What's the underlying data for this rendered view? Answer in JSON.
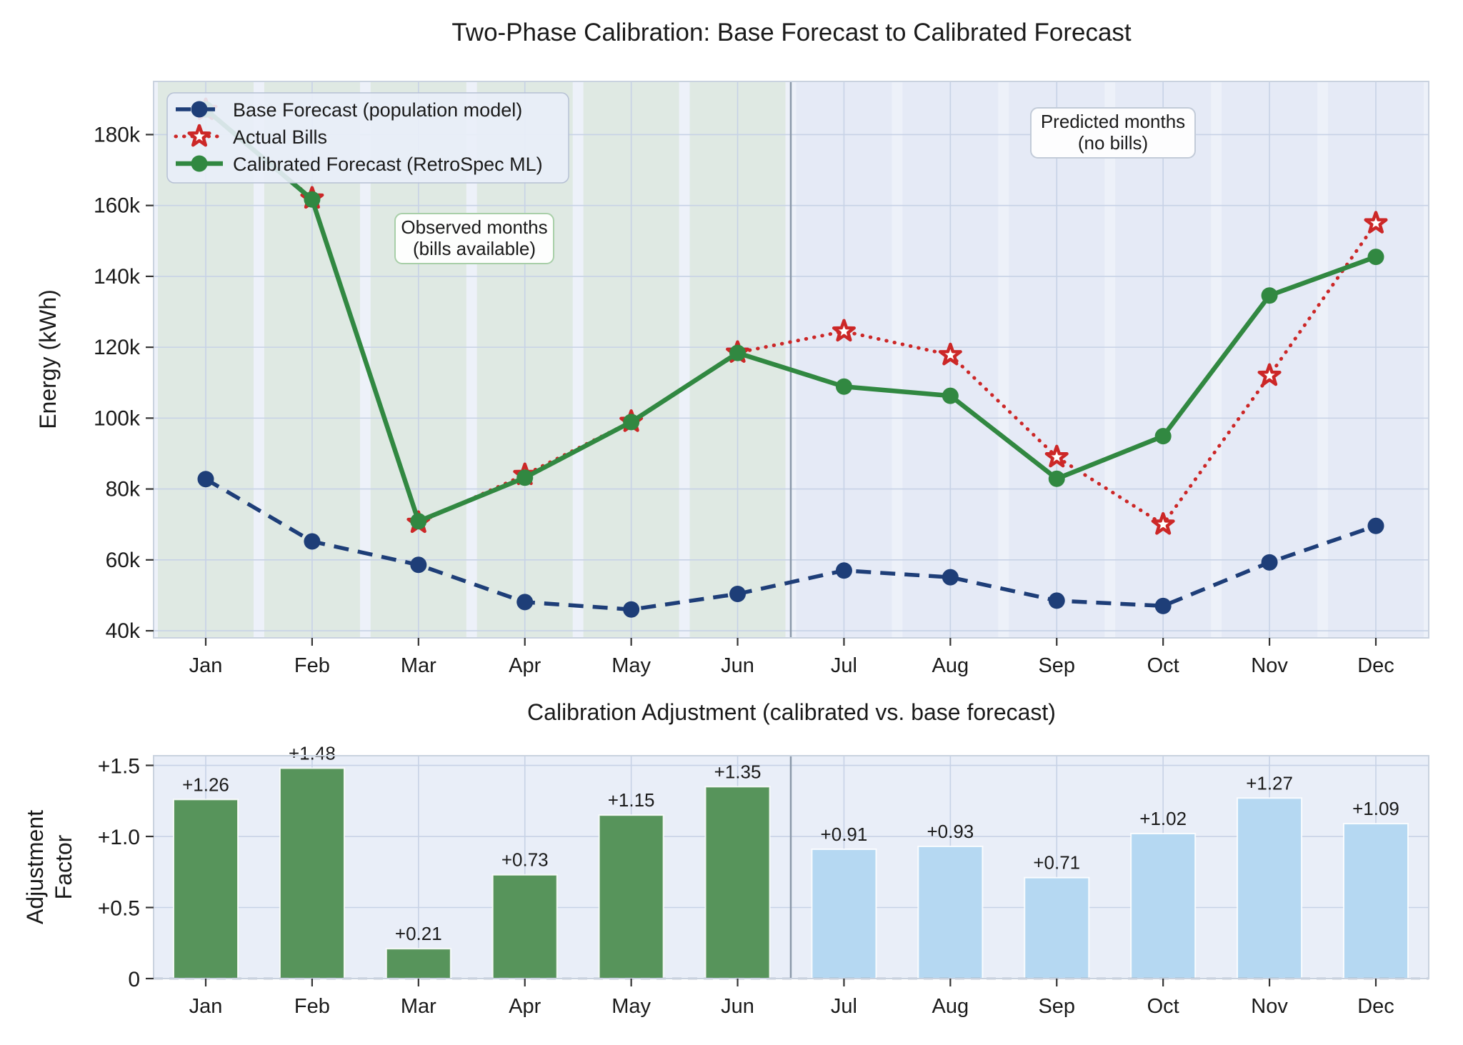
{
  "figure": {
    "months": [
      "Jan",
      "Feb",
      "Mar",
      "Apr",
      "May",
      "Jun",
      "Jul",
      "Aug",
      "Sep",
      "Oct",
      "Nov",
      "Dec"
    ],
    "colors": {
      "base_line": "#1e3e78",
      "actual_line": "#cc2727",
      "calibrated_line": "#318841",
      "bar_observed": "#57945b",
      "bar_predicted": "#b5d8f2",
      "bar_label_observed": "#3a7d44",
      "bar_label_predicted": "#7e8ca2",
      "band_observed": "#dfe9e3",
      "band_predicted": "#e5eaf6",
      "plot_bg_top": "#edf1f9",
      "plot_bg_bottom": "#e9eef8",
      "grid": "#c7d2e6",
      "divider": "#8b99aa",
      "spine": "#c9d2df",
      "tick": "#333333",
      "zero_dash": "#8a95a5",
      "annot_observed": "#2e7d32",
      "annot_observed_border": "#a8cfa8",
      "annot_predicted": "#8496ab",
      "annot_predicted_border": "#c2cbd8",
      "legend_bg": "#e9eef8",
      "legend_border": "#b6c0d4"
    }
  },
  "chart_data": [
    {
      "type": "line",
      "title": "Two-Phase Calibration: Base Forecast to Calibrated Forecast",
      "ylabel": "Energy (kWh)",
      "x": [
        "Jan",
        "Feb",
        "Mar",
        "Apr",
        "May",
        "Jun",
        "Jul",
        "Aug",
        "Sep",
        "Oct",
        "Nov",
        "Dec"
      ],
      "ylim": [
        38000,
        195000
      ],
      "yticks": [
        {
          "v": 40000,
          "label": "40k"
        },
        {
          "v": 60000,
          "label": "60k"
        },
        {
          "v": 80000,
          "label": "80k"
        },
        {
          "v": 100000,
          "label": "100k"
        },
        {
          "v": 120000,
          "label": "120k"
        },
        {
          "v": 140000,
          "label": "140k"
        },
        {
          "v": 160000,
          "label": "160k"
        },
        {
          "v": 180000,
          "label": "180k"
        }
      ],
      "grid": true,
      "legend_position": "upper left",
      "series": [
        {
          "name": "Base Forecast (population model)",
          "style": "dashed",
          "marker": "circle",
          "values": [
            82800,
            65200,
            58600,
            48100,
            46000,
            50400,
            57000,
            55100,
            48500,
            47000,
            59300,
            69600
          ]
        },
        {
          "name": "Actual Bills",
          "style": "dotted",
          "marker": "star",
          "values": [
            187000,
            162000,
            70500,
            84000,
            99000,
            118500,
            124500,
            117800,
            89000,
            70000,
            112000,
            155000
          ]
        },
        {
          "name": "Calibrated Forecast (RetroSpec ML)",
          "style": "solid",
          "marker": "circle",
          "values": [
            187100,
            161700,
            70900,
            83200,
            98900,
            118400,
            108900,
            106300,
            82900,
            94900,
            134600,
            145500
          ]
        }
      ],
      "regions": {
        "observed": {
          "month_index_range": [
            0,
            5
          ]
        },
        "predicted": {
          "month_index_range": [
            6,
            11
          ]
        }
      },
      "annotations": [
        {
          "line1": "Observed months",
          "line2": "(bills available)"
        },
        {
          "line1": "Predicted months",
          "line2": "(no bills)"
        }
      ]
    },
    {
      "type": "bar",
      "title": "Calibration Adjustment (calibrated vs. base forecast)",
      "ylabel_line1": "Adjustment",
      "ylabel_line2": "Factor",
      "categories": [
        "Jan",
        "Feb",
        "Mar",
        "Apr",
        "May",
        "Jun",
        "Jul",
        "Aug",
        "Sep",
        "Oct",
        "Nov",
        "Dec"
      ],
      "values": [
        1.26,
        1.48,
        0.21,
        0.73,
        1.15,
        1.35,
        0.91,
        0.93,
        0.71,
        1.02,
        1.27,
        1.09
      ],
      "bar_labels": [
        "+1.26",
        "+1.48",
        "+0.21",
        "+0.73",
        "+1.15",
        "+1.35",
        "+0.91",
        "+0.93",
        "+0.71",
        "+1.02",
        "+1.27",
        "+1.09"
      ],
      "observed_count": 6,
      "ylim": [
        0,
        1.568
      ],
      "yticks": [
        {
          "v": 0,
          "label": "0"
        },
        {
          "v": 0.5,
          "label": "+0.5"
        },
        {
          "v": 1.0,
          "label": "+1.0"
        },
        {
          "v": 1.5,
          "label": "+1.5"
        }
      ],
      "grid": true,
      "zero_line": true
    }
  ]
}
